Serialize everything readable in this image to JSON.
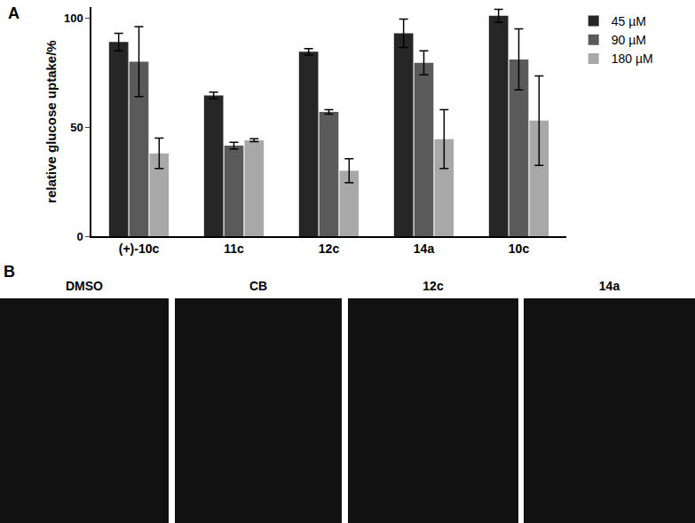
{
  "chart_data": {
    "type": "bar",
    "panel_label": "A",
    "y_label": "relative glucose uptake/%",
    "categories": [
      "(+)-10c",
      "11c",
      "12c",
      "14a",
      "10c"
    ],
    "series": [
      {
        "name": "45 µM",
        "color": "#262626",
        "values": [
          89,
          64.5,
          84.5,
          93,
          101
        ],
        "errors": [
          4,
          1.5,
          1.5,
          6.5,
          3
        ]
      },
      {
        "name": "90 µM",
        "color": "#5a5a5a",
        "values": [
          80,
          41.5,
          57,
          79.5,
          81
        ],
        "errors": [
          16,
          1.5,
          1,
          5.5,
          14
        ]
      },
      {
        "name": "180 µM",
        "color": "#a8a8a8",
        "values": [
          38,
          44,
          30,
          44.5,
          53
        ],
        "errors": [
          7,
          0.7,
          5.5,
          13.5,
          20.5
        ]
      }
    ],
    "ylim": [
      0,
      105
    ],
    "yticks": [
      0,
      50,
      100
    ],
    "grid": false,
    "legend": "top right"
  },
  "images": {
    "panel_label": "B",
    "labels": [
      "DMSO",
      "CB",
      "12c",
      "14a"
    ]
  }
}
